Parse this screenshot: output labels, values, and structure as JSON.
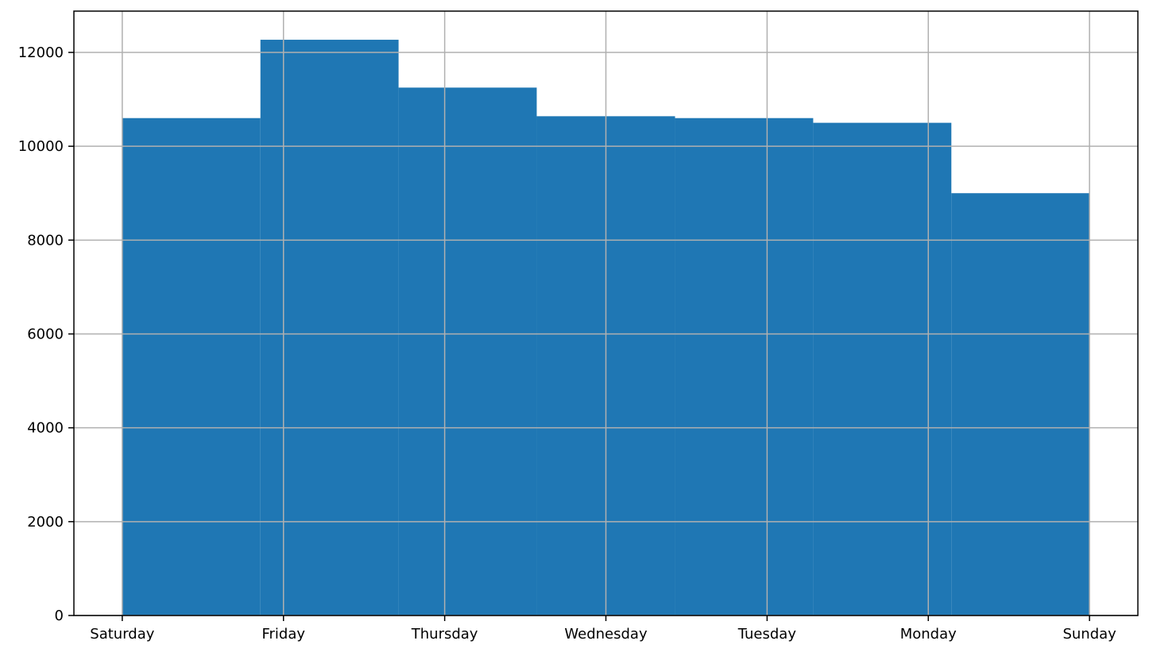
{
  "chart_data": {
    "type": "bar",
    "title": "",
    "xlabel": "",
    "ylabel": "",
    "x_ticks": [
      "Saturday",
      "Friday",
      "Thursday",
      "Wednesday",
      "Tuesday",
      "Monday",
      "Sunday"
    ],
    "bins": [
      {
        "from": 0,
        "to": 0.857,
        "value": 10600
      },
      {
        "from": 0.857,
        "to": 1.714,
        "value": 12270
      },
      {
        "from": 1.714,
        "to": 2.571,
        "value": 11250
      },
      {
        "from": 2.571,
        "to": 3.429,
        "value": 10640
      },
      {
        "from": 3.429,
        "to": 4.286,
        "value": 10600
      },
      {
        "from": 4.286,
        "to": 5.143,
        "value": 10500
      },
      {
        "from": 5.143,
        "to": 6.0,
        "value": 9000
      }
    ],
    "xlim": [
      -0.3,
      6.3
    ],
    "ylim": [
      0,
      12880
    ],
    "y_ticks": [
      0,
      2000,
      4000,
      6000,
      8000,
      10000,
      12000
    ],
    "grid": true,
    "colors": {
      "bar": "#1f77b4",
      "grid": "#b0b0b0",
      "axes": "#000000"
    }
  }
}
